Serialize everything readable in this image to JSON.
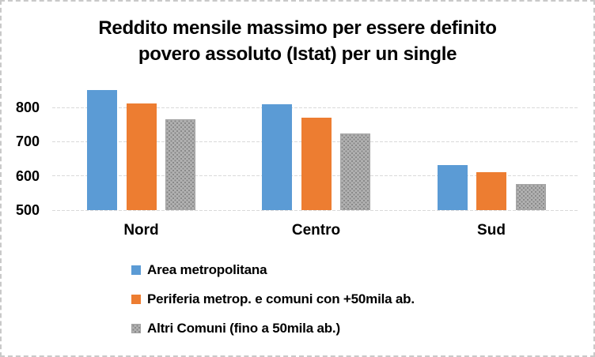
{
  "chart_data": {
    "type": "bar",
    "title": "Reddito mensile massimo per essere definito povero assoluto (Istat) per un single",
    "title_lines": [
      "Reddito mensile massimo per essere definito",
      "povero assoluto (Istat) per un single"
    ],
    "categories": [
      "Nord",
      "Centro",
      "Sud"
    ],
    "series": [
      {
        "name": "Area metropolitana",
        "color": "#5B9BD5",
        "pattern": "solid",
        "values": [
          850,
          810,
          632
        ]
      },
      {
        "name": "Periferia metrop. e comuni con +50mila ab.",
        "color": "#ED7D31",
        "pattern": "solid",
        "values": [
          812,
          770,
          611
        ]
      },
      {
        "name": "Altri Comuni (fino a 50mila ab.)",
        "color": "#A6A6A6",
        "pattern": "dotted",
        "values": [
          765,
          724,
          577
        ]
      }
    ],
    "xlabel": "",
    "ylabel": "",
    "yticks": [
      500,
      600,
      700,
      800
    ],
    "ylim": [
      500,
      860
    ],
    "grid": "horizontal-dashed",
    "gridline_color": "#D9D9D9",
    "text_color": "#000000",
    "legend_position": "bottom-left"
  }
}
